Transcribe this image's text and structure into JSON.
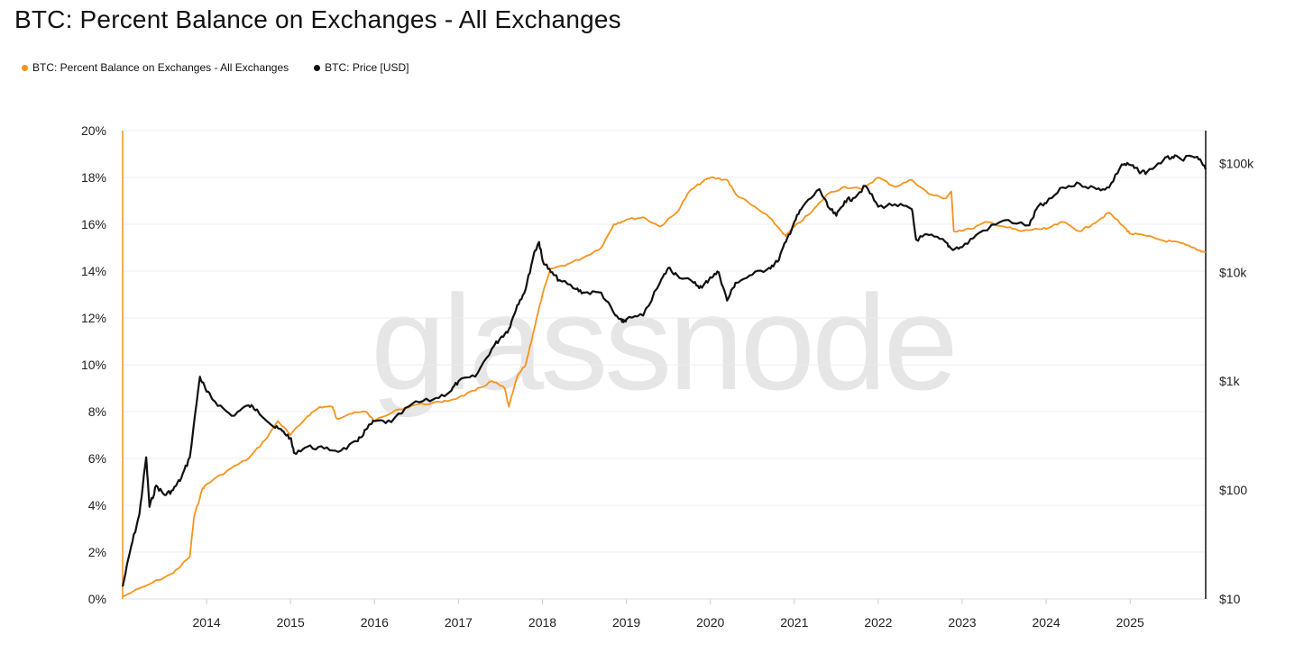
{
  "title": "BTC: Percent Balance on Exchanges - All Exchanges",
  "watermark": "glassnode",
  "legend": [
    {
      "label": "BTC: Percent Balance on Exchanges - All Exchanges",
      "color": "#f7931a"
    },
    {
      "label": "BTC: Price [USD]",
      "color": "#111111"
    }
  ],
  "chart_data": {
    "type": "line",
    "title": "BTC: Percent Balance on Exchanges - All Exchanges",
    "x_range": [
      2013.0,
      2025.9
    ],
    "x_ticks": [
      {
        "value": 2014.0,
        "label": "2014"
      },
      {
        "value": 2015.0,
        "label": "2015"
      },
      {
        "value": 2016.0,
        "label": "2016"
      },
      {
        "value": 2017.0,
        "label": "2017"
      },
      {
        "value": 2018.0,
        "label": "2018"
      },
      {
        "value": 2019.0,
        "label": "2019"
      },
      {
        "value": 2020.0,
        "label": "2020"
      },
      {
        "value": 2021.0,
        "label": "2021"
      },
      {
        "value": 2022.0,
        "label": "2022"
      },
      {
        "value": 2023.0,
        "label": "2023"
      },
      {
        "value": 2024.0,
        "label": "2024"
      },
      {
        "value": 2025.0,
        "label": "2025"
      }
    ],
    "y_left": {
      "label": "",
      "ylim": [
        0,
        20
      ],
      "ticks": [
        {
          "value": 0,
          "label": "0%"
        },
        {
          "value": 2,
          "label": "2%"
        },
        {
          "value": 4,
          "label": "4%"
        },
        {
          "value": 6,
          "label": "6%"
        },
        {
          "value": 8,
          "label": "8%"
        },
        {
          "value": 10,
          "label": "10%"
        },
        {
          "value": 12,
          "label": "12%"
        },
        {
          "value": 14,
          "label": "14%"
        },
        {
          "value": 16,
          "label": "16%"
        },
        {
          "value": 18,
          "label": "18%"
        },
        {
          "value": 20,
          "label": "20%"
        }
      ]
    },
    "y_right": {
      "label": "",
      "scale": "log",
      "ylim": [
        10,
        200000
      ],
      "ticks": [
        {
          "value": 10,
          "label": "$10"
        },
        {
          "value": 100,
          "label": "$100"
        },
        {
          "value": 1000,
          "label": "$1k"
        },
        {
          "value": 10000,
          "label": "$10k"
        },
        {
          "value": 100000,
          "label": "$100k"
        }
      ]
    },
    "grid": true,
    "series": [
      {
        "name": "BTC: Percent Balance on Exchanges - All Exchanges",
        "axis": "left",
        "color": "#f7931a",
        "x": [
          2013.0,
          2013.3,
          2013.6,
          2013.8,
          2013.85,
          2013.95,
          2014.0,
          2014.3,
          2014.5,
          2014.7,
          2014.85,
          2015.0,
          2015.2,
          2015.35,
          2015.5,
          2015.55,
          2015.7,
          2015.9,
          2016.0,
          2016.3,
          2016.5,
          2016.8,
          2017.0,
          2017.2,
          2017.4,
          2017.55,
          2017.6,
          2017.7,
          2017.8,
          2017.9,
          2018.0,
          2018.1,
          2018.3,
          2018.5,
          2018.7,
          2018.85,
          2019.0,
          2019.2,
          2019.4,
          2019.6,
          2019.75,
          2019.9,
          2020.0,
          2020.2,
          2020.3,
          2020.5,
          2020.7,
          2020.9,
          2021.0,
          2021.2,
          2021.4,
          2021.6,
          2021.8,
          2022.0,
          2022.2,
          2022.4,
          2022.6,
          2022.8,
          2022.87,
          2022.9,
          2023.1,
          2023.3,
          2023.5,
          2023.7,
          2023.9,
          2024.0,
          2024.2,
          2024.4,
          2024.55,
          2024.75,
          2024.95,
          2025.0,
          2025.2,
          2025.4,
          2025.6,
          2025.8,
          2025.9
        ],
        "values": [
          0.1,
          0.6,
          1.1,
          1.8,
          3.5,
          4.7,
          4.9,
          5.6,
          6.0,
          6.8,
          7.6,
          7.0,
          7.8,
          8.2,
          8.2,
          7.7,
          7.9,
          8.0,
          7.6,
          8.1,
          8.3,
          8.4,
          8.6,
          8.9,
          9.3,
          9.0,
          8.2,
          9.5,
          10.0,
          11.5,
          13.0,
          14.1,
          14.3,
          14.6,
          15.0,
          16.0,
          16.2,
          16.3,
          15.9,
          16.5,
          17.4,
          17.8,
          18.0,
          17.9,
          17.3,
          16.8,
          16.3,
          15.5,
          15.9,
          16.5,
          17.3,
          17.6,
          17.5,
          18.0,
          17.6,
          17.9,
          17.3,
          17.1,
          17.4,
          15.7,
          15.8,
          16.1,
          15.9,
          15.7,
          15.8,
          15.8,
          16.1,
          15.7,
          16.0,
          16.5,
          15.8,
          15.6,
          15.5,
          15.3,
          15.2,
          14.9,
          14.8
        ]
      },
      {
        "name": "BTC: Price [USD]",
        "axis": "right",
        "color": "#111111",
        "x": [
          2013.0,
          2013.1,
          2013.2,
          2013.28,
          2013.32,
          2013.4,
          2013.5,
          2013.6,
          2013.7,
          2013.8,
          2013.92,
          2014.0,
          2014.1,
          2014.3,
          2014.5,
          2014.6,
          2014.8,
          2014.9,
          2015.0,
          2015.04,
          2015.2,
          2015.4,
          2015.6,
          2015.8,
          2015.9,
          2016.0,
          2016.2,
          2016.45,
          2016.7,
          2016.9,
          2017.0,
          2017.2,
          2017.4,
          2017.5,
          2017.6,
          2017.7,
          2017.8,
          2017.9,
          2017.96,
          2018.0,
          2018.1,
          2018.2,
          2018.4,
          2018.5,
          2018.7,
          2018.87,
          2018.95,
          2019.0,
          2019.2,
          2019.4,
          2019.5,
          2019.6,
          2019.8,
          2019.9,
          2020.0,
          2020.1,
          2020.2,
          2020.3,
          2020.5,
          2020.7,
          2020.8,
          2020.9,
          2021.0,
          2021.1,
          2021.3,
          2021.4,
          2021.5,
          2021.6,
          2021.7,
          2021.85,
          2022.0,
          2022.2,
          2022.4,
          2022.45,
          2022.6,
          2022.8,
          2022.87,
          2023.0,
          2023.2,
          2023.5,
          2023.8,
          2023.9,
          2024.0,
          2024.2,
          2024.4,
          2024.6,
          2024.75,
          2024.9,
          2025.0,
          2025.1,
          2025.2,
          2025.4,
          2025.5,
          2025.6,
          2025.8,
          2025.9
        ],
        "values": [
          13,
          30,
          60,
          200,
          70,
          110,
          90,
          100,
          130,
          200,
          1100,
          800,
          650,
          480,
          600,
          550,
          380,
          350,
          300,
          220,
          250,
          240,
          230,
          280,
          360,
          430,
          420,
          620,
          680,
          800,
          1000,
          1100,
          2000,
          2500,
          3000,
          5000,
          7000,
          15000,
          19000,
          13000,
          10000,
          8500,
          7000,
          6500,
          6500,
          4000,
          3500,
          3700,
          4000,
          8000,
          11000,
          9500,
          8000,
          7200,
          9000,
          10000,
          5500,
          8000,
          9500,
          11000,
          12500,
          19000,
          29000,
          40000,
          58000,
          40000,
          33000,
          45000,
          48000,
          62000,
          40000,
          42000,
          38000,
          20000,
          22000,
          19000,
          16500,
          17000,
          23000,
          30000,
          27000,
          40000,
          43000,
          60000,
          65000,
          58000,
          60000,
          98000,
          97000,
          85000,
          83000,
          108000,
          115000,
          110000,
          115000,
          88000
        ]
      }
    ]
  }
}
